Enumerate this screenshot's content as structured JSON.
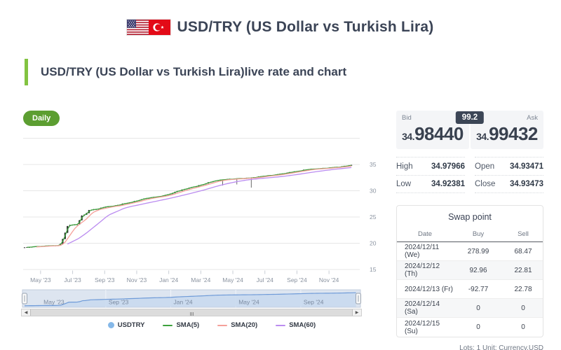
{
  "header": {
    "title": "USD/TRY (US Dollar vs Turkish Lira)"
  },
  "subtitle": {
    "text": "USD/TRY (US Dollar vs Turkish Lira)live rate and chart"
  },
  "chart": {
    "interval_label": "Daily"
  },
  "quote": {
    "bid_label": "Bid",
    "ask_label": "Ask",
    "spread": "99.2",
    "bid_prefix": "34.",
    "bid_value": "98440",
    "ask_prefix": "34.",
    "ask_value": "99432"
  },
  "ohlc": {
    "high_label": "High",
    "high": "34.97966",
    "low_label": "Low",
    "low": "34.92381",
    "open_label": "Open",
    "open": "34.93471",
    "close_label": "Close",
    "close": "34.93473"
  },
  "swap": {
    "title": "Swap point",
    "columns": [
      "Date",
      "Buy",
      "Sell"
    ],
    "rows": [
      [
        "2024/12/11 (We)",
        "278.99",
        "68.47"
      ],
      [
        "2024/12/12 (Th)",
        "92.96",
        "22.81"
      ],
      [
        "2024/12/13 (Fr)",
        "-92.77",
        "22.78"
      ],
      [
        "2024/12/14 (Sa)",
        "0",
        "0"
      ],
      [
        "2024/12/15 (Su)",
        "0",
        "0"
      ]
    ]
  },
  "footer_note": "Lots: 1 Unit: Currency.USD",
  "legend": [
    {
      "label": "USDTRY",
      "color": "#85b8e8",
      "type": "circle"
    },
    {
      "label": "SMA(5)",
      "color": "#3da13d",
      "type": "line"
    },
    {
      "label": "SMA(20)",
      "color": "#f5a09a",
      "type": "line"
    },
    {
      "label": "SMA(60)",
      "color": "#bb8cf0",
      "type": "line"
    }
  ],
  "chart_data": {
    "type": "candlestick",
    "pair": "USDTRY",
    "interval": "Daily",
    "y_ticks": [
      35,
      30,
      25,
      20,
      15
    ],
    "y_gridlines": [
      40,
      35,
      30,
      25,
      20,
      15
    ],
    "ylim": [
      13.5,
      40
    ],
    "x_tick_months": [
      1,
      3,
      5,
      7,
      9,
      11,
      13,
      15,
      17,
      19
    ],
    "x_tick_labels": [
      "May '23",
      "Jul '23",
      "Sep '23",
      "Nov '23",
      "Jan '24",
      "Mar '24",
      "May '24",
      "Jul '24",
      "Sep '24",
      "Nov '24"
    ],
    "navigator_tick_months": [
      1,
      5,
      9,
      13,
      17
    ],
    "navigator_tick_labels": [
      "May '23",
      "Sep '23",
      "Jan '24",
      "May '24",
      "Sep '24"
    ],
    "time_origin": "2023-04",
    "time_end_month": 20.4,
    "series_anchors": {
      "months_from_apr_2023": [
        0,
        1,
        2.2,
        2.45,
        2.7,
        3.0,
        3.35,
        3.5,
        3.8,
        4.0,
        4.5,
        5,
        5.5,
        6,
        6.5,
        7,
        7.5,
        8,
        8.5,
        9,
        9.5,
        10,
        10.5,
        11,
        11.5,
        12,
        12.5,
        13,
        13.5,
        14,
        14.5,
        15,
        15.5,
        16,
        16.5,
        17,
        17.5,
        18,
        18.5,
        19,
        19.5,
        20,
        20.4
      ],
      "close": [
        19.2,
        19.45,
        19.6,
        21.3,
        23.4,
        23.55,
        23.6,
        25.2,
        25.45,
        26.3,
        26.5,
        26.9,
        27.1,
        27.4,
        27.75,
        28.1,
        28.5,
        28.8,
        28.95,
        29.3,
        29.9,
        30.3,
        30.7,
        31.1,
        31.6,
        32.0,
        32.15,
        32.25,
        32.35,
        32.45,
        32.6,
        32.8,
        32.95,
        33.2,
        33.45,
        33.7,
        34.0,
        34.15,
        34.25,
        34.35,
        34.5,
        34.7,
        34.93
      ]
    },
    "wick_dips": [
      {
        "t": 12.3,
        "low": 31.0
      },
      {
        "t": 13.3,
        "low": 31.2
      },
      {
        "t": 14.15,
        "low": 30.6
      }
    ],
    "sma_windows": [
      5,
      20,
      60
    ],
    "colors": {
      "candle": "#2a2a2a",
      "grid": "#e7e7e7",
      "axis_label": "#8a93a0",
      "tick": "#c9ced6",
      "sma5": "#3da13d",
      "sma20": "#f5a09a",
      "sma60": "#bb8cf0",
      "nav_bg": "#dde5f0",
      "nav_fill": "#c9d9ee",
      "nav_line": "#6f9bd8",
      "nav_grid": "#f0f4fa",
      "nav_label": "#7b8aa0"
    }
  }
}
